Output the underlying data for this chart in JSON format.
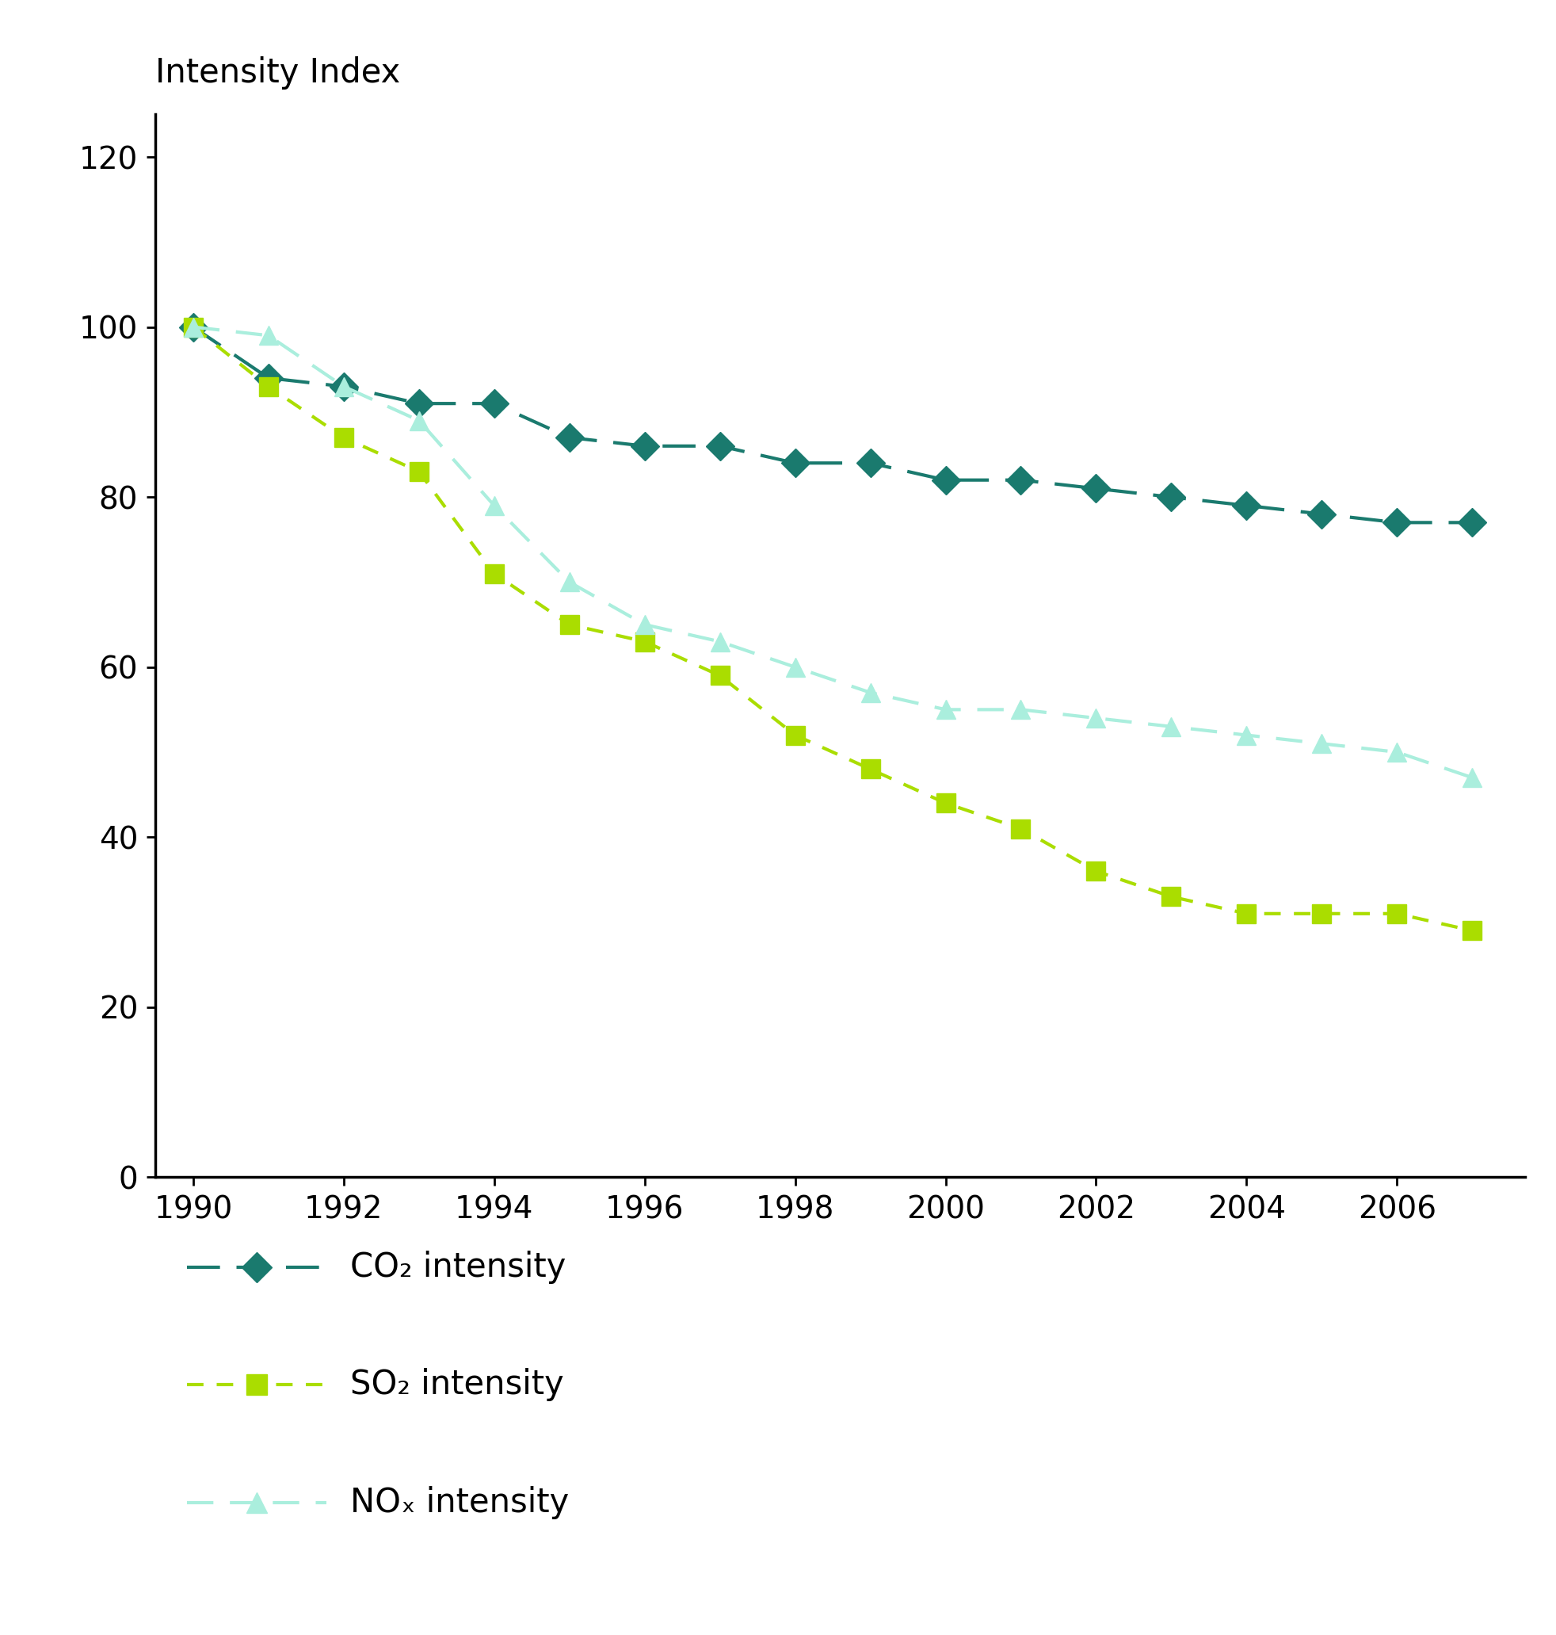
{
  "years": [
    1990,
    1991,
    1992,
    1993,
    1994,
    1995,
    1996,
    1997,
    1998,
    1999,
    2000,
    2001,
    2002,
    2003,
    2004,
    2005,
    2006,
    2007
  ],
  "co2": [
    100,
    94,
    93,
    91,
    91,
    87,
    86,
    86,
    84,
    84,
    82,
    82,
    81,
    80,
    79,
    78,
    77,
    77
  ],
  "so2": [
    100,
    93,
    87,
    83,
    71,
    65,
    63,
    59,
    52,
    48,
    44,
    41,
    36,
    33,
    31,
    31,
    31,
    29
  ],
  "nox": [
    100,
    99,
    93,
    89,
    79,
    70,
    65,
    63,
    60,
    57,
    55,
    55,
    54,
    53,
    52,
    51,
    50,
    47
  ],
  "co2_color": "#1a7a6e",
  "so2_color": "#aadd00",
  "nox_color": "#aaeedd",
  "ylabel": "Intensity Index",
  "ylim": [
    0,
    125
  ],
  "yticks": [
    0,
    20,
    40,
    60,
    80,
    100,
    120
  ],
  "xlim": [
    1989.5,
    2007.7
  ],
  "xticks": [
    1990,
    1992,
    1994,
    1996,
    1998,
    2000,
    2002,
    2004,
    2006
  ],
  "legend_co2": "CO₂ intensity",
  "legend_so2": "SO₂ intensity",
  "legend_nox": "NOₓ intensity",
  "background_color": "#ffffff",
  "title_fontsize": 30,
  "tick_fontsize": 28,
  "legend_fontsize": 30
}
